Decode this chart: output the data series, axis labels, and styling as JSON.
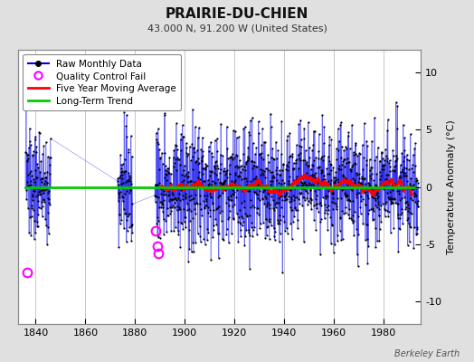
{
  "title": "PRAIRIE-DU-CHIEN",
  "subtitle": "43.000 N, 91.200 W (United States)",
  "ylabel": "Temperature Anomaly (°C)",
  "xlabel_credit": "Berkeley Earth",
  "year_start": 1836,
  "year_end": 1993,
  "ylim": [
    -12,
    12
  ],
  "yticks": [
    -10,
    -5,
    0,
    5,
    10
  ],
  "xticks": [
    1840,
    1860,
    1880,
    1900,
    1920,
    1940,
    1960,
    1980
  ],
  "raw_color": "#0000ee",
  "marker_color": "#000000",
  "qc_color": "#ff00ff",
  "moving_avg_color": "#ff0000",
  "trend_color": "#00cc00",
  "background_color": "#e0e0e0",
  "plot_bg_color": "#ffffff",
  "grid_color": "#b0b0b0",
  "seed": 137,
  "noise_amplitude": 2.8,
  "trend_value": 0.0
}
